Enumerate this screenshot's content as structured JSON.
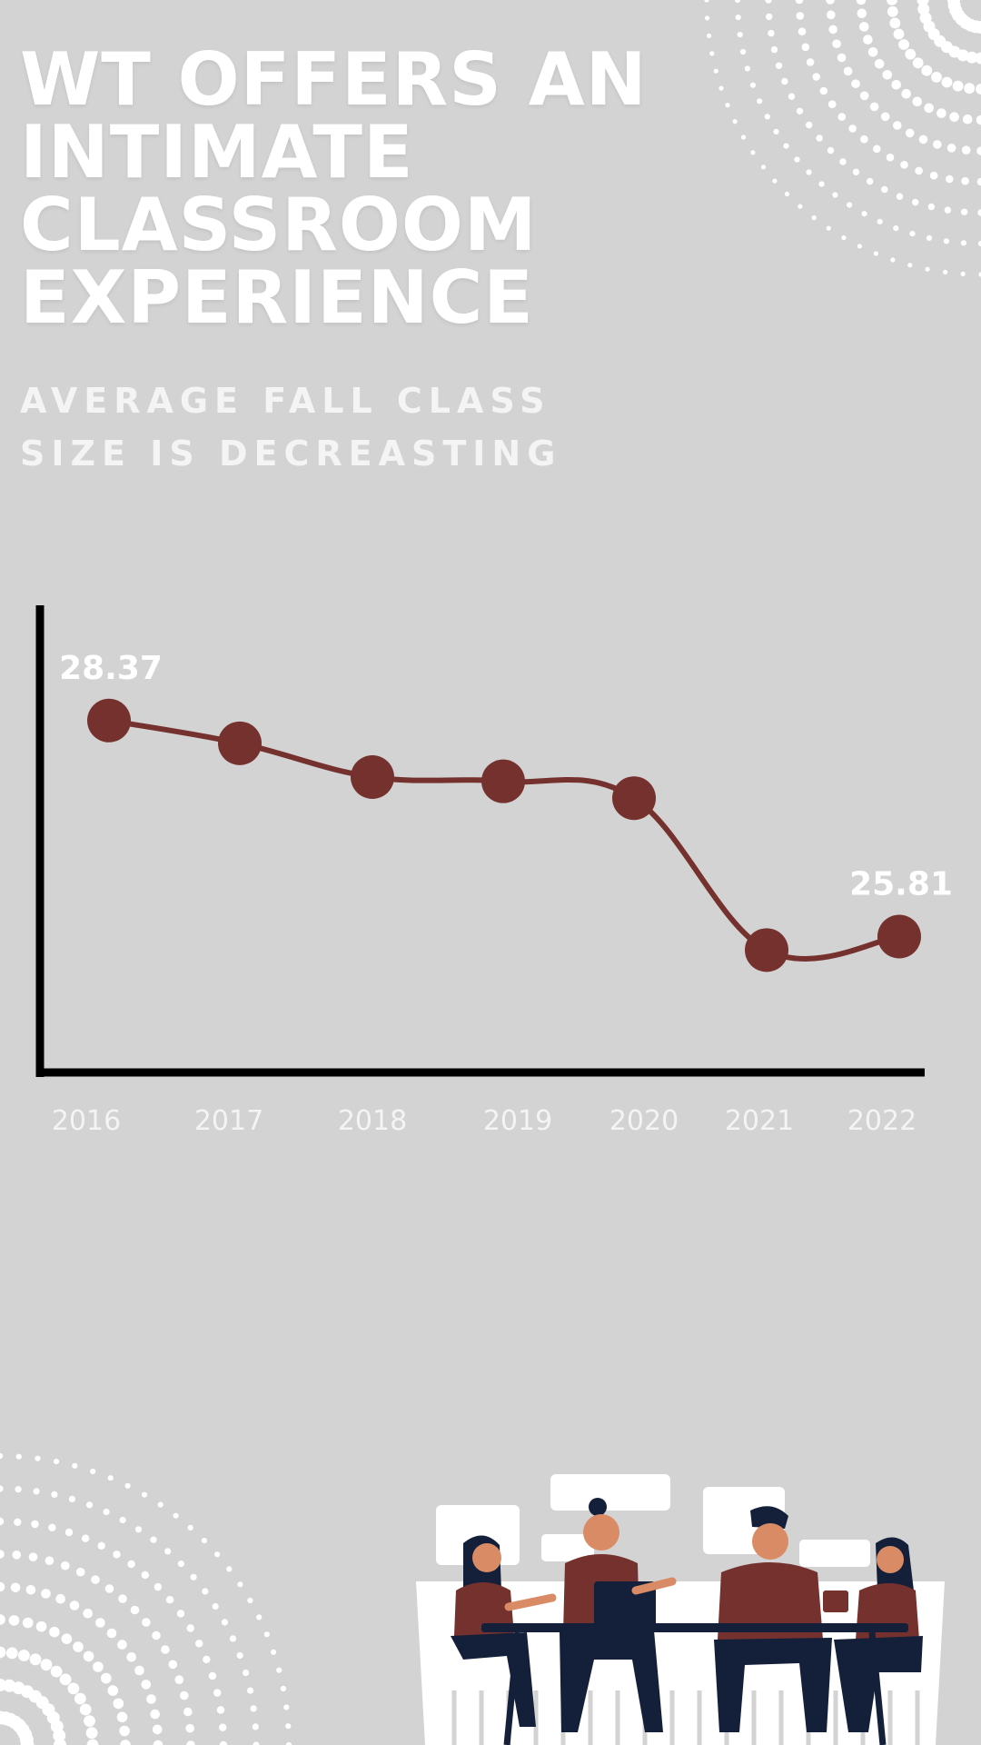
{
  "header": {
    "title_lines": [
      "WT OFFERS AN",
      "INTIMATE",
      "CLASSROOM",
      "EXPERIENCE"
    ],
    "subtitle_lines": [
      "AVERAGE FALL CLASS",
      "SIZE IS DECREASTING"
    ]
  },
  "colors": {
    "background": "#d3d3d3",
    "line": "#74312d",
    "marker": "#74312d",
    "axis": "#000000",
    "text": "#ffffff"
  },
  "chart_data": {
    "type": "line",
    "title": "",
    "xlabel": "",
    "ylabel": "",
    "categories": [
      "2016",
      "2017",
      "2018",
      "2019",
      "2020",
      "2021",
      "2022"
    ],
    "values": [
      28.37,
      28.1,
      27.7,
      27.65,
      27.45,
      25.65,
      25.81
    ],
    "data_labels": [
      {
        "index": 0,
        "text": "28.37"
      },
      {
        "index": 6,
        "text": "25.81"
      }
    ],
    "ylim": [
      24.2,
      29.8
    ],
    "grid": false,
    "legend": "none"
  }
}
